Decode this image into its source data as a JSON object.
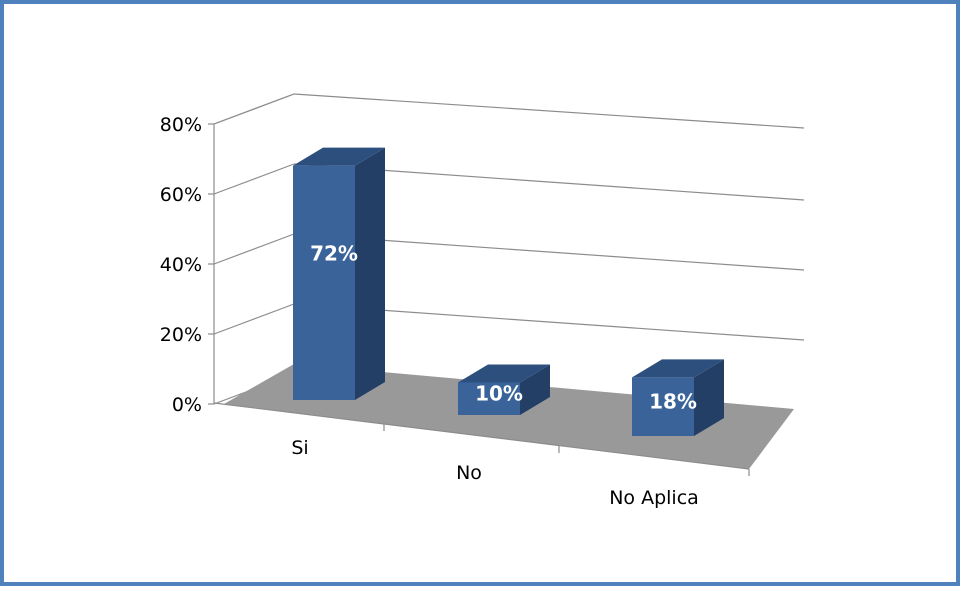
{
  "chart_data": {
    "type": "bar",
    "categories": [
      "Si",
      "No",
      "No Aplica"
    ],
    "values": [
      72,
      10,
      18
    ],
    "data_labels": [
      "72%",
      "10%",
      "18%"
    ],
    "yticks": [
      "0%",
      "20%",
      "40%",
      "60%",
      "80%"
    ],
    "ylim": [
      0,
      80
    ],
    "grid": true,
    "style": "3d-column",
    "colors": {
      "bar_front": "#3a6399",
      "bar_side": "#233f66",
      "bar_top": "#2c4f7e",
      "floor": "#999999",
      "frame_border": "#4f81bd"
    }
  }
}
